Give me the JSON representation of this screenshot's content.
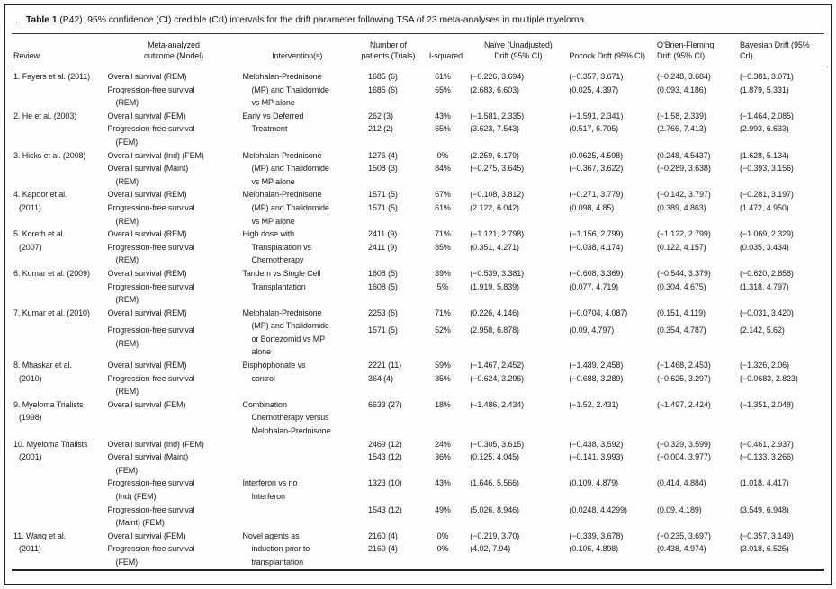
{
  "title": {
    "prefix": ".",
    "bold": "Table 1",
    "rest": " (P42). 95% confidence (CI) credible (CrI) intervals for the drift parameter following TSA of 23 meta-analyses in multiple myeloma."
  },
  "table": {
    "columns": [
      {
        "key": "review",
        "label": "Review"
      },
      {
        "key": "outcome",
        "label": "Meta-analyzed\noutcome (Model)"
      },
      {
        "key": "intervention",
        "label": "Intervention(s)"
      },
      {
        "key": "patients",
        "label": "Number of\npatients (Trials)"
      },
      {
        "key": "isquared",
        "label": "I-squared"
      },
      {
        "key": "naive",
        "label": "Naïve (Unadjusted)\nDrift (95% CI)"
      },
      {
        "key": "pocock",
        "label": "Pocock Drift (95% CI)"
      },
      {
        "key": "obf",
        "label": "O’Brien-Fleming\nDrift (95% CI)"
      },
      {
        "key": "bayes",
        "label": "Bayesian Drift (95% CrI)"
      }
    ],
    "blocks": [
      {
        "review": "1. Fayers et al. (2011)",
        "intervention": "Melphalan-Prednisone\n(MP) and Thalidomide\nvs MP alone",
        "outcomes": [
          {
            "outcome": "Overall survival (REM)",
            "patients": "1685 (6)",
            "isquared": "61%",
            "naive": "(−0.226, 3.694)",
            "pocock": "(−0.357, 3.671)",
            "obf": "(−0.248, 3.684)",
            "bayes": "(−0.381, 3.071)"
          },
          {
            "outcome": "Progression-free survival\n(REM)",
            "patients": "1685 (6)",
            "isquared": "65%",
            "naive": "(2.683, 6.603)",
            "pocock": "(0.025, 4.397)",
            "obf": "(0.093, 4.186)",
            "bayes": "(1.879, 5.331)"
          }
        ]
      },
      {
        "review": "2. He et al. (2003)",
        "intervention": "Early vs Deferred\nTreatment",
        "outcomes": [
          {
            "outcome": "Overall survival (FEM)",
            "patients": "262 (3)",
            "isquared": "43%",
            "naive": "(−1.581, 2.335)",
            "pocock": "(−1.591, 2.341)",
            "obf": "(−1.58, 2.339)",
            "bayes": "(−1.464, 2.085)"
          },
          {
            "outcome": "Progression-free survival\n(FEM)",
            "patients": "212 (2)",
            "isquared": "65%",
            "naive": "(3.623, 7.543)",
            "pocock": "(0.517, 6.705)",
            "obf": "(2.766, 7.413)",
            "bayes": "(2.993, 6.633)"
          }
        ]
      },
      {
        "review": "3. Hicks et al. (2008)",
        "intervention": "Melphalan-Prednisone\n(MP) and Thalidomide\nvs MP alone",
        "outcomes": [
          {
            "outcome": "Overall survival (Ind) (FEM)",
            "patients": "1276 (4)",
            "isquared": "0%",
            "naive": "(2.259, 6.179)",
            "pocock": "(0.0625, 4.598)",
            "obf": "(0.248, 4.5437)",
            "bayes": "(1.628, 5.134)"
          },
          {
            "outcome": "Overall survival (Maint)\n(REM)",
            "patients": "1508 (3)",
            "isquared": "84%",
            "naive": "(−0.275, 3.645)",
            "pocock": "(−0.367, 3.622)",
            "obf": "(−0.289, 3.638)",
            "bayes": "(−0.393, 3.156)"
          }
        ]
      },
      {
        "review": "4. Kapoor et al.\n(2011)",
        "intervention": "Melphalan-Prednisone\n(MP) and Thalidomide\nvs MP alone",
        "outcomes": [
          {
            "outcome": "Overall survival (REM)",
            "patients": "1571 (5)",
            "isquared": "67%",
            "naive": "(−0.108, 3.812)",
            "pocock": "(−0.271, 3.779)",
            "obf": "(−0.142, 3.797)",
            "bayes": "(−0.281, 3.197)"
          },
          {
            "outcome": "Progression-free survival\n(REM)",
            "patients": "1571 (5)",
            "isquared": "61%",
            "naive": "(2.122, 6.042)",
            "pocock": "(0.098, 4.85)",
            "obf": "(0.389, 4.863)",
            "bayes": "(1.472, 4.950)"
          }
        ]
      },
      {
        "review": "5. Koreth et al.\n(2007)",
        "intervention": "High dose with\nTransplatation vs\nChemotherapy",
        "outcomes": [
          {
            "outcome": "Overall survival (REM)",
            "patients": "2411 (9)",
            "isquared": "71%",
            "naive": "(−1.121, 2.798)",
            "pocock": "(−1.156, 2.799)",
            "obf": "(−1.122, 2.799)",
            "bayes": "(−1.069, 2.329)"
          },
          {
            "outcome": "Progression-free survival\n(REM)",
            "patients": "2411 (9)",
            "isquared": "85%",
            "naive": "(0.351, 4.271)",
            "pocock": "(−0.038, 4.174)",
            "obf": "(0.122, 4.157)",
            "bayes": "(0.035, 3.434)"
          }
        ]
      },
      {
        "review": "6. Kumar et al. (2009)",
        "intervention": "Tandem vs Single Cell\nTransplantation",
        "outcomes": [
          {
            "outcome": "Overall survival (REM)",
            "patients": "1608 (5)",
            "isquared": "39%",
            "naive": "(−0.539, 3.381)",
            "pocock": "(−0.608, 3.369)",
            "obf": "(−0.544, 3.379)",
            "bayes": "(−0.620, 2.858)"
          },
          {
            "outcome": "Progression-free survival\n(REM)",
            "patients": "1608 (5)",
            "isquared": "5%",
            "naive": "(1.919, 5.839)",
            "pocock": "(0.077, 4.719)",
            "obf": "(0.304, 4.675)",
            "bayes": "(1.318, 4.797)"
          }
        ]
      },
      {
        "review": "7. Kumar et al. (2010)",
        "intervention": "Melphalan-Prednisone\n(MP) and Thalidomide\nor Bortezomid vs MP\nalone",
        "outcomes": [
          {
            "outcome": "Overall survival (REM)",
            "patients": "2253 (6)",
            "isquared": "71%",
            "naive": "(0.226, 4.146)",
            "pocock": "(−0.0704, 4.087)",
            "obf": "(0.151, 4.119)",
            "bayes": "(−0.031, 3.420)"
          },
          {
            "outcome": "Progression-free survival\n(REM)",
            "patients": "1571 (5)",
            "isquared": "52%",
            "naive": "(2.958, 6.878)",
            "pocock": "(0.09, 4.797)",
            "obf": "(0.354, 4.787)",
            "bayes": "(2.142, 5.62)"
          }
        ]
      },
      {
        "review": "8. Mhaskar et al.\n(2010)",
        "intervention": "Bisphophonate vs\ncontrol",
        "outcomes": [
          {
            "outcome": "Overall survival (REM)",
            "patients": "2221 (11)",
            "isquared": "59%",
            "naive": "(−1.467, 2.452)",
            "pocock": "(−1.489, 2.458)",
            "obf": "(−1.468, 2.453)",
            "bayes": "(−1.326, 2.06)"
          },
          {
            "outcome": "Progression-free survival\n(REM)",
            "patients": "364 (4)",
            "isquared": "35%",
            "naive": "(−0.624, 3.296)",
            "pocock": "(−0.688, 3.289)",
            "obf": "(−0.625, 3.297)",
            "bayes": "(−0.0683, 2.823)"
          }
        ]
      },
      {
        "review": "9. Myeloma Trialists\n(1998)",
        "intervention": "Combination\nChemotherapy versus\nMelphalan-Prednisone",
        "outcomes": [
          {
            "outcome": "Overall survival (FEM)",
            "patients": "6633 (27)",
            "isquared": "18%",
            "naive": "(−1.486, 2.434)",
            "pocock": "(−1.52, 2.431)",
            "obf": "(−1.497, 2.424)",
            "bayes": "(−1.351, 2.048)"
          }
        ]
      },
      {
        "review": "10. Myeloma Trialists\n(2001)",
        "intervention": "Interferon vs no\nInterferon",
        "int_start": 2,
        "int_span": 2,
        "outcomes": [
          {
            "outcome": "Overall survival (Ind) (FEM)",
            "patients": "2469 (12)",
            "isquared": "24%",
            "naive": "(−0.305, 3.615)",
            "pocock": "(−0.438, 3.592)",
            "obf": "(−0.329, 3.599)",
            "bayes": "(−0.461, 2.937)"
          },
          {
            "outcome": "Overall survival (Maint)\n(FEM)",
            "patients": "1543 (12)",
            "isquared": "36%",
            "naive": "(0.125, 4.045)",
            "pocock": "(−0.141, 3.993)",
            "obf": "(−0.004, 3.977)",
            "bayes": "(−0.133, 3.266)"
          },
          {
            "outcome": "Progression-free survival\n(Ind) (FEM)",
            "patients": "1323 (10)",
            "isquared": "43%",
            "naive": "(1.646, 5.566)",
            "pocock": "(0.109, 4.879)",
            "obf": "(0.414, 4.884)",
            "bayes": "(1.018, 4.417)"
          },
          {
            "outcome": "Progression-free survival\n(Maint) (FEM)",
            "patients": "1543 (12)",
            "isquared": "49%",
            "naive": "(5.026, 8.946)",
            "pocock": "(0.0248, 4.4299)",
            "obf": "(0.09, 4.189)",
            "bayes": "(3.549, 6.948)"
          }
        ]
      },
      {
        "review": "11. Wang et al.\n(2011)",
        "intervention": "Novel agents as\ninduction prior to\ntransplantation",
        "outcomes": [
          {
            "outcome": "Overall survival (FEM)",
            "patients": "2160 (4)",
            "isquared": "0%",
            "naive": "(−0.219, 3.70)",
            "pocock": "(−0.339, 3.678)",
            "obf": "(−0.235, 3.697)",
            "bayes": "(−0.357, 3.149)"
          },
          {
            "outcome": "Progression-free survival\n(FEM)",
            "patients": "2160 (4)",
            "isquared": "0%",
            "naive": "(4.02, 7.94)",
            "pocock": "(0.106, 4.898)",
            "obf": "(0.438, 4.974)",
            "bayes": "(3.018, 6.525)"
          }
        ]
      }
    ]
  }
}
